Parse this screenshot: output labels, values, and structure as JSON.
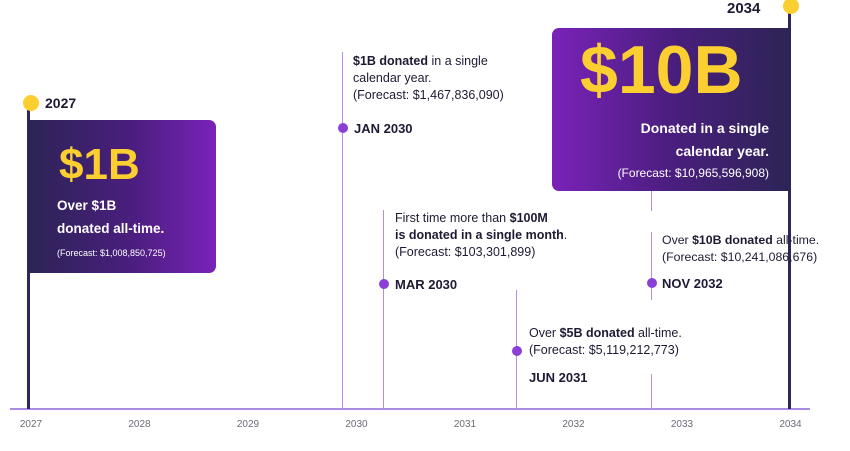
{
  "chart_data": {
    "type": "timeline",
    "x_axis": {
      "range": [
        2027,
        2034
      ],
      "ticks": [
        "2027",
        "2028",
        "2029",
        "2030",
        "2031",
        "2032",
        "2033",
        "2034"
      ]
    },
    "milestones": [
      {
        "id": "m2027",
        "x": 2027.0,
        "date_label": "2027",
        "card": {
          "amount": "$1B",
          "line1": "Over $1B",
          "line2": "donated all-time.",
          "forecast": "(Forecast: $1,008,850,725)"
        }
      },
      {
        "id": "jan2030",
        "x": 2030.0,
        "date_label": "JAN 2030",
        "text": {
          "bold": "$1B donated",
          "rest1": " in a single",
          "rest2": "calendar year.",
          "forecast": "(Forecast: $1,467,836,090)"
        }
      },
      {
        "id": "mar2030",
        "x": 2030.17,
        "date_label": "MAR 2030",
        "text": {
          "lead": "First time more than ",
          "bold1": "$100M",
          "bold2": "is donated in a single month",
          "tail": ".",
          "forecast": "(Forecast: $103,301,899)"
        }
      },
      {
        "id": "jun2031",
        "x": 2031.5,
        "date_label": "JUN 2031",
        "text": {
          "lead": "Over ",
          "bold": "$5B donated",
          "rest": " all-time.",
          "forecast": "(Forecast: $5,119,212,773)"
        }
      },
      {
        "id": "nov2032",
        "x": 2032.83,
        "date_label": "NOV 2032",
        "text": {
          "lead": "Over ",
          "bold": "$10B donated",
          "rest": " all-time.",
          "forecast": "(Forecast: $10,241,086,676)"
        }
      },
      {
        "id": "m2034",
        "x": 2034.0,
        "date_label": "2034",
        "card": {
          "amount": "$10B",
          "line1": "Donated in a single",
          "line2": "calendar year.",
          "forecast": "(Forecast: $10,965,596,908)"
        }
      }
    ]
  },
  "colors": {
    "accent_purple": "#8a3fd6",
    "stem": "#b58ee6",
    "axis": "#a98be3",
    "dark_navy": "#2e2558",
    "gold": "#fbcf30"
  }
}
